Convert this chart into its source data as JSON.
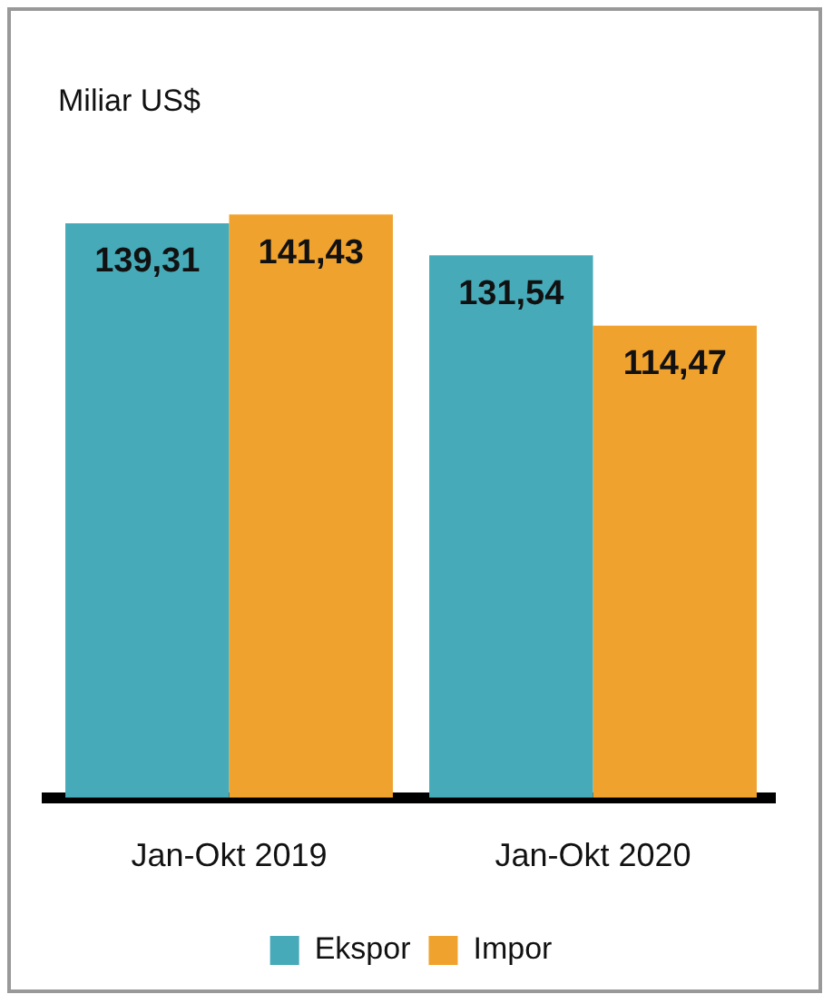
{
  "chart_data": {
    "type": "bar",
    "ylabel": "Miliar US$",
    "categories": [
      "Jan-Okt 2019",
      "Jan-Okt 2020"
    ],
    "series": [
      {
        "name": "Ekspor",
        "color": "#46aab8",
        "values": [
          139.31,
          131.54
        ],
        "value_labels": [
          "139,31",
          "131,54"
        ]
      },
      {
        "name": "Impor",
        "color": "#f0a22e",
        "values": [
          141.43,
          114.47
        ],
        "value_labels": [
          "141,43",
          "114,47"
        ]
      }
    ],
    "legend": "bottom",
    "grid": false
  }
}
